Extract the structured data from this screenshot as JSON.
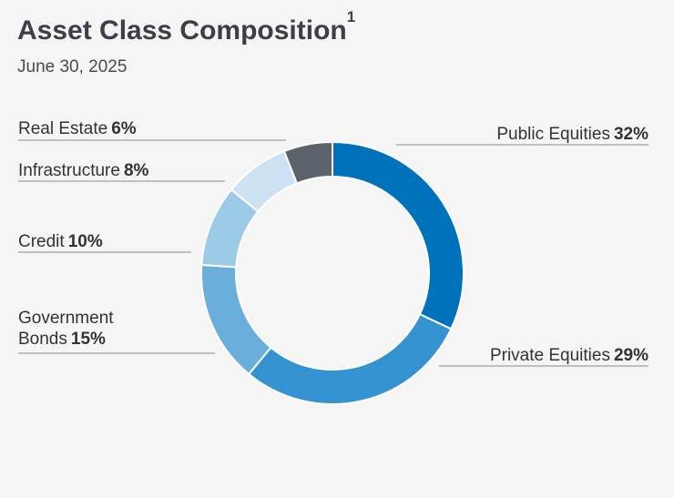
{
  "header": {
    "title": "Asset Class Composition",
    "title_footnote": "1",
    "subtitle": "June 30, 2025"
  },
  "chart_data": {
    "type": "pie",
    "style": "donut",
    "title": "Asset Class Composition",
    "subtitle": "June 30, 2025",
    "categories": [
      "Public Equities",
      "Private Equities",
      "Government Bonds",
      "Credit",
      "Infrastructure",
      "Real Estate"
    ],
    "values": [
      32,
      29,
      15,
      10,
      8,
      6
    ],
    "value_labels": [
      "32%",
      "29%",
      "15%",
      "10%",
      "8%",
      "6%"
    ],
    "label_lines": [
      [
        "Public Equities"
      ],
      [
        "Private Equities"
      ],
      [
        "Government",
        "Bonds"
      ],
      [
        "Credit"
      ],
      [
        "Infrastructure"
      ],
      [
        "Real Estate"
      ]
    ],
    "colors": [
      "#0072bb",
      "#3592d0",
      "#6aaedb",
      "#9ccbe8",
      "#cce2f2",
      "#5d636b"
    ],
    "legend": "none"
  }
}
